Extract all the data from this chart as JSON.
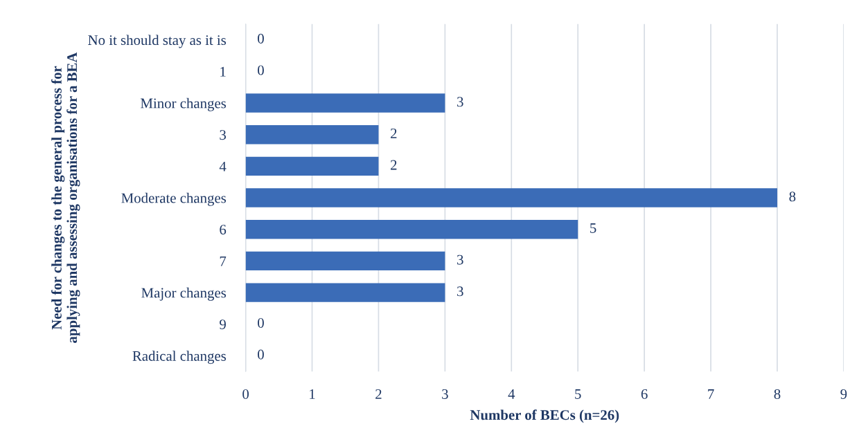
{
  "chart_data": {
    "type": "bar",
    "orientation": "horizontal",
    "categories": [
      "No it should stay as it is",
      "1",
      "Minor changes",
      "3",
      "4",
      "Moderate changes",
      "6",
      "7",
      "Major changes",
      "9",
      "Radical changes"
    ],
    "values": [
      0,
      0,
      3,
      2,
      2,
      8,
      5,
      3,
      3,
      0,
      0
    ],
    "color": "#3b6cb7",
    "xlabel": "Number of BECs (n=26)",
    "ylabel": "Need for changes to the general process for\napplying and assessing organisations for a BEA",
    "xlim": [
      0,
      9
    ],
    "xticks": [
      0,
      1,
      2,
      3,
      4,
      5,
      6,
      7,
      8,
      9
    ],
    "grid": "x",
    "data_labels": true,
    "legend": false
  }
}
